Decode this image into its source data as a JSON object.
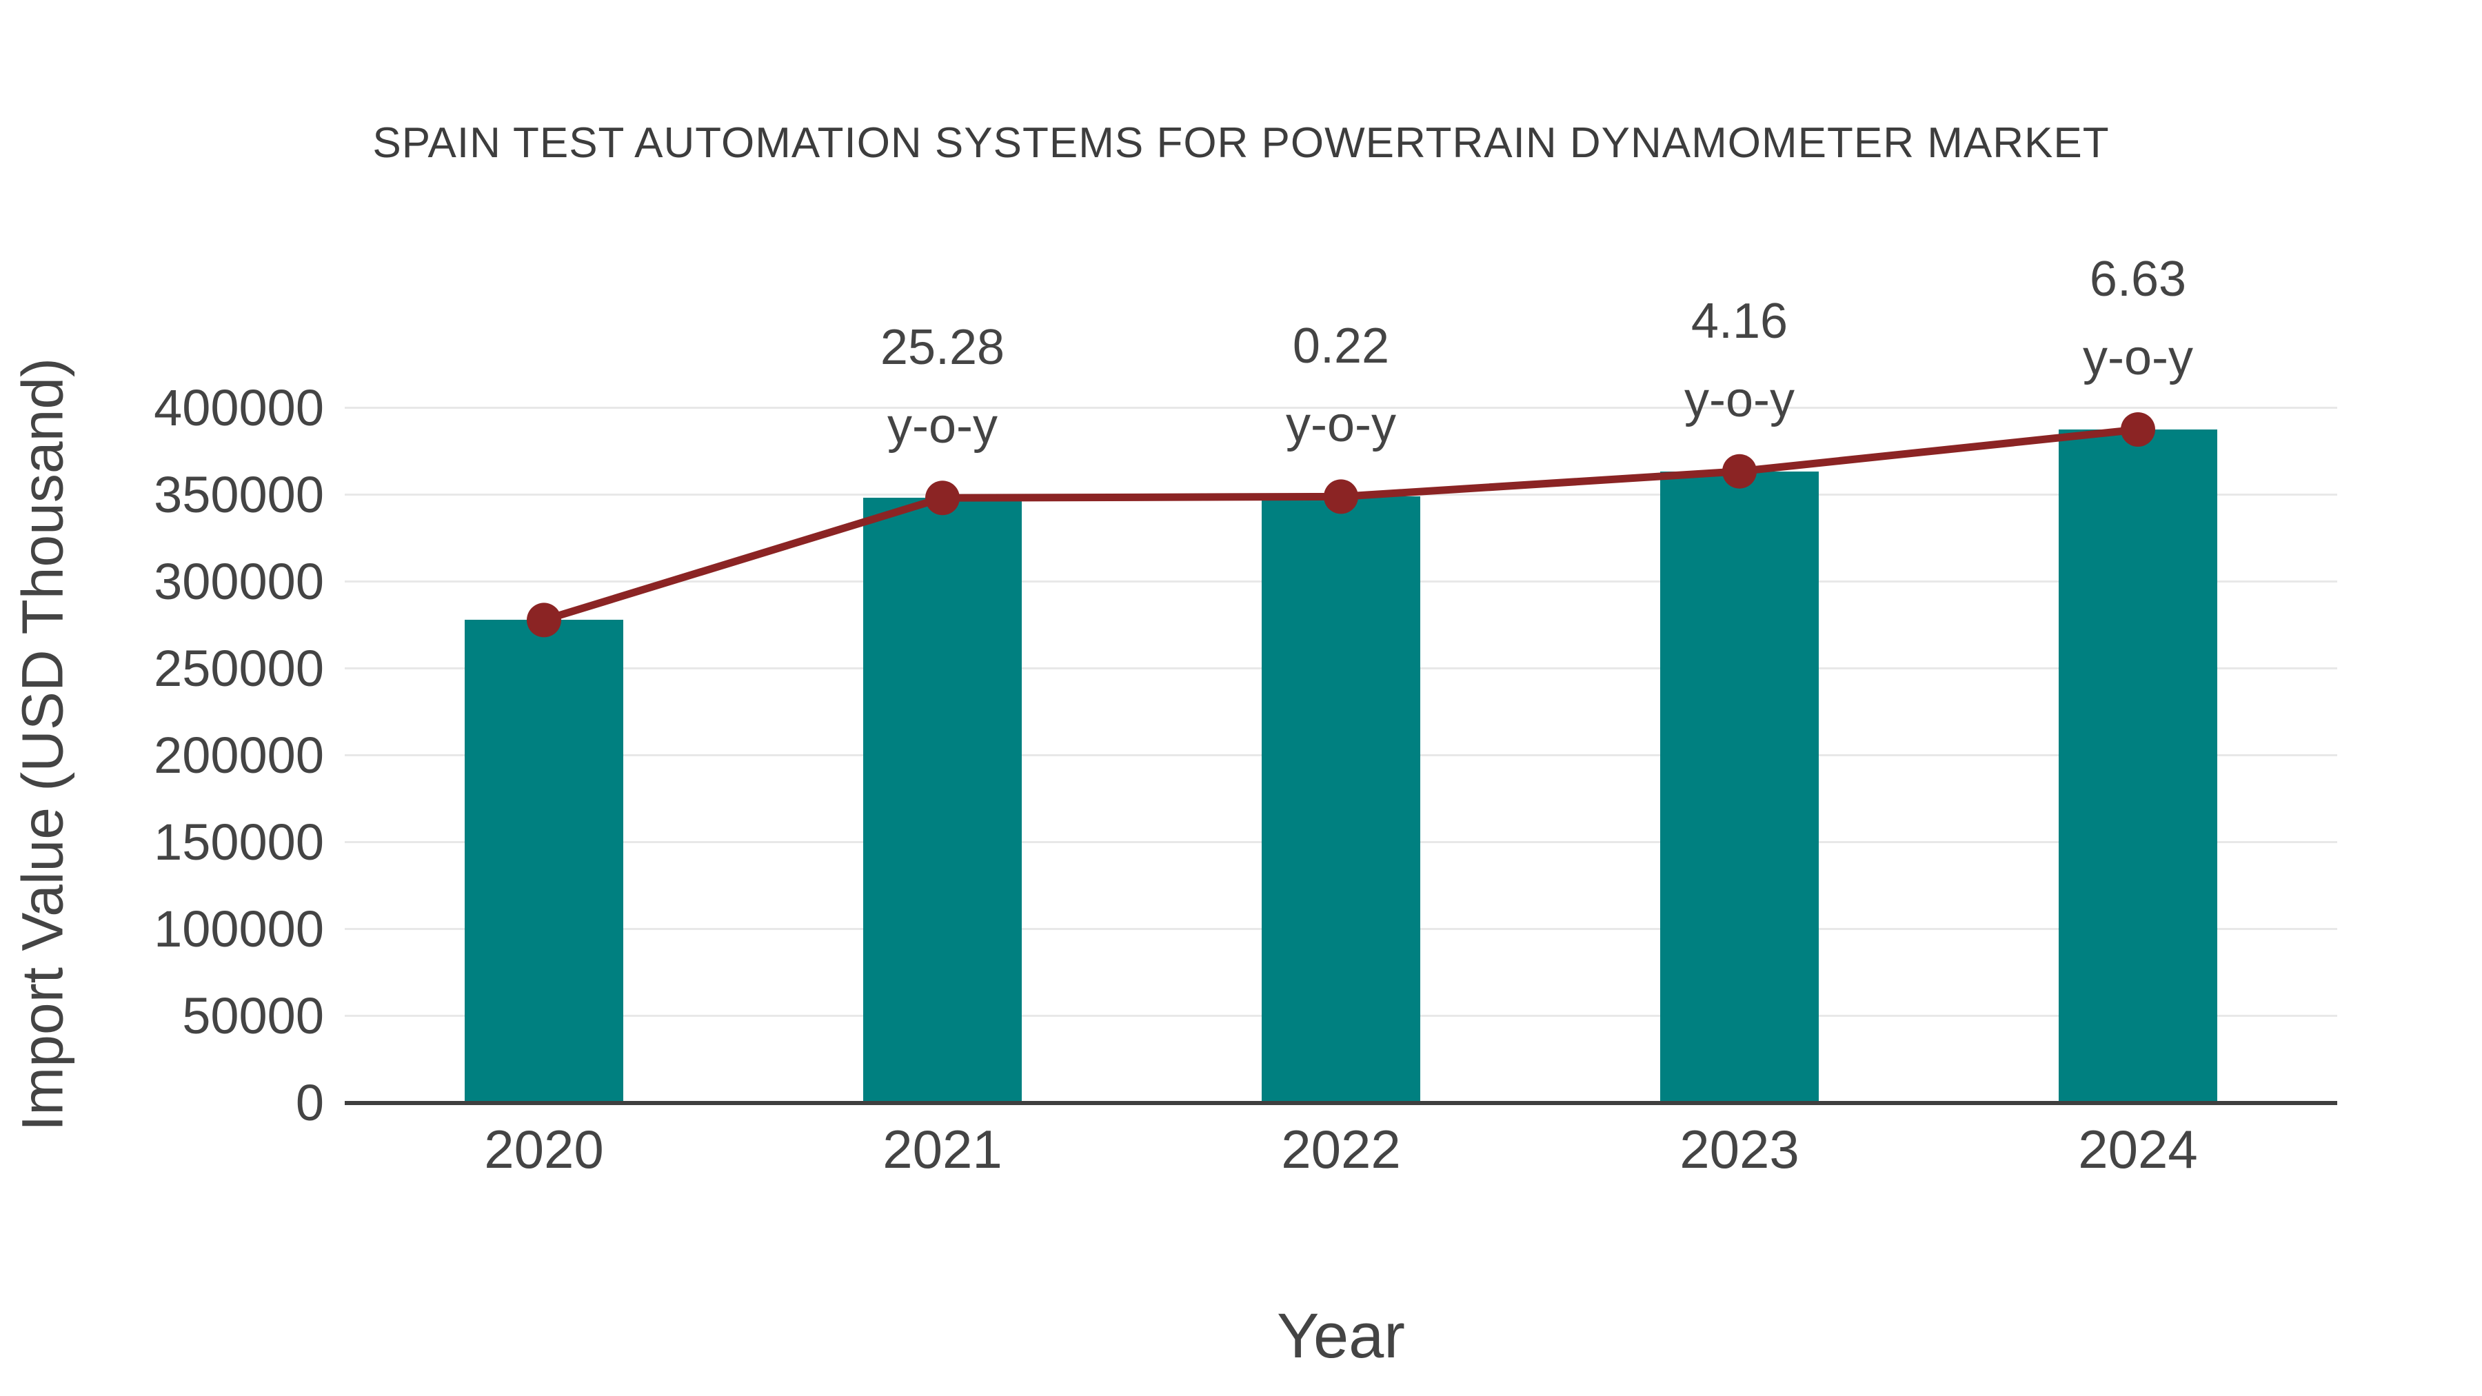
{
  "title": "SPAIN TEST AUTOMATION SYSTEMS FOR POWERTRAIN DYNAMOMETER MARKET",
  "chart_data": {
    "type": "bar",
    "categories": [
      "2020",
      "2021",
      "2022",
      "2023",
      "2024"
    ],
    "series": [
      {
        "name": "import-value-bars",
        "type": "bar",
        "values": [
          278000,
          348300,
          349050,
          363600,
          387700
        ]
      },
      {
        "name": "import-value-trend-line",
        "type": "line",
        "values": [
          278000,
          348300,
          349050,
          363600,
          387700
        ]
      }
    ],
    "annotations": [
      {
        "category": "2021",
        "value_label": "25.28",
        "suffix_label": "y-o-y"
      },
      {
        "category": "2022",
        "value_label": "0.22",
        "suffix_label": "y-o-y"
      },
      {
        "category": "2023",
        "value_label": "4.16",
        "suffix_label": "y-o-y"
      },
      {
        "category": "2024",
        "value_label": "6.63",
        "suffix_label": "y-o-y"
      }
    ],
    "xlabel": "Year",
    "ylabel": "Import Value (USD Thousand)",
    "ylim": [
      0,
      436500
    ],
    "yticks": [
      0,
      50000,
      100000,
      150000,
      200000,
      250000,
      300000,
      350000,
      400000
    ],
    "grid": true,
    "legend_position": "none"
  },
  "colors": {
    "bar": "#008080",
    "line": "#8B2424",
    "marker": "#8B2424",
    "grid": "#e8e8e8",
    "axis_line": "#3f3f3f",
    "text": "#444444",
    "title_text": "#3d3d3d",
    "background": "#ffffff"
  }
}
